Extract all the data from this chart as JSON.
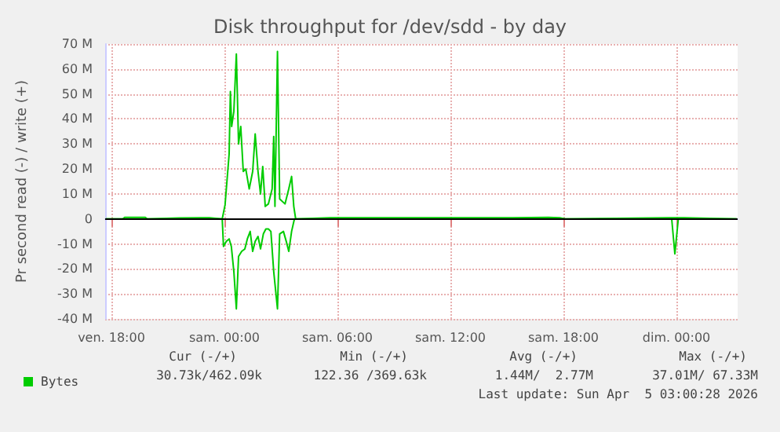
{
  "chart_data": {
    "type": "line",
    "title": "Disk throughput for /dev/sdd - by day",
    "ylabel": "Pr second read (-) / write (+)",
    "xlim": [
      "2026-04-03T17:40",
      "2026-04-05T03:15"
    ],
    "xticks": [
      {
        "value": "2026-04-03T18:00",
        "label": "ven. 18:00"
      },
      {
        "value": "2026-04-04T00:00",
        "label": "sam. 00:00"
      },
      {
        "value": "2026-04-04T06:00",
        "label": "sam. 06:00"
      },
      {
        "value": "2026-04-04T12:00",
        "label": "sam. 12:00"
      },
      {
        "value": "2026-04-04T18:00",
        "label": "sam. 18:00"
      },
      {
        "value": "2026-04-05T00:00",
        "label": "dim. 00:00"
      }
    ],
    "ylim": [
      -40,
      70
    ],
    "yticks": [
      {
        "value": -40,
        "label": "-40 M"
      },
      {
        "value": -30,
        "label": "-30 M"
      },
      {
        "value": -20,
        "label": "-20 M"
      },
      {
        "value": -10,
        "label": "-10 M"
      },
      0,
      {
        "value": 10,
        "label": "10 M"
      },
      {
        "value": 20,
        "label": "20 M"
      },
      {
        "value": 30,
        "label": "30 M"
      },
      {
        "value": 40,
        "label": "40 M"
      },
      {
        "value": 50,
        "label": "50 M"
      },
      {
        "value": 60,
        "label": "60 M"
      },
      {
        "value": 70,
        "label": "70 M"
      }
    ],
    "grid": true,
    "legend": "bottom left",
    "ref_lines": [
      {
        "axis": "y",
        "value": 0,
        "color": "#000000"
      }
    ],
    "series": [
      {
        "name": "Bytes",
        "color": "#00cc00",
        "x": [
          "2026-04-03T17:42",
          "2026-04-03T18:36",
          "2026-04-03T18:42",
          "2026-04-03T19:48",
          "2026-04-03T19:54",
          "2026-04-03T21:36",
          "2026-04-03T23:12",
          "2026-04-03T23:53",
          "2026-04-04T00:02",
          "2026-04-04T00:15",
          "2026-04-04T00:19",
          "2026-04-04T00:23",
          "2026-04-04T00:30",
          "2026-04-04T00:38",
          "2026-04-04T00:45",
          "2026-04-04T00:52",
          "2026-04-04T01:00",
          "2026-04-04T01:08",
          "2026-04-04T01:19",
          "2026-04-04T01:30",
          "2026-04-04T01:38",
          "2026-04-04T01:47",
          "2026-04-04T01:55",
          "2026-04-04T02:02",
          "2026-04-04T02:10",
          "2026-04-04T02:20",
          "2026-04-04T02:32",
          "2026-04-04T02:37",
          "2026-04-04T02:41",
          "2026-04-04T02:49",
          "2026-04-04T02:56",
          "2026-04-04T03:13",
          "2026-04-04T03:25",
          "2026-04-04T03:34",
          "2026-04-04T03:41",
          "2026-04-04T03:47",
          "2026-04-04T05:36",
          "2026-04-04T05:48",
          "2026-04-04T13:36",
          "2026-04-04T15:18",
          "2026-04-04T17:12",
          "2026-04-04T17:48",
          "2026-04-04T18:06",
          "2026-04-04T23:36",
          "2026-04-05T00:24",
          "2026-04-05T03:12"
        ],
        "values": [
          0,
          0,
          0.6,
          0.6,
          0,
          0.4,
          0.5,
          0,
          5.6,
          26,
          51,
          37,
          43,
          66,
          30,
          37,
          19,
          20,
          12,
          19,
          34,
          19,
          10,
          21,
          5,
          6,
          12,
          33,
          5,
          67,
          8,
          6,
          12,
          17,
          5,
          0,
          0.5,
          0.5,
          0.5,
          0.5,
          0.6,
          0.5,
          0,
          0.5,
          0.5,
          0
        ]
      },
      {
        "color": "#00cc00",
        "x": [
          "2026-04-03T17:42",
          "2026-04-03T23:53",
          "2026-04-03T23:57",
          "2026-04-04T00:06",
          "2026-04-04T00:15",
          "2026-04-04T00:22",
          "2026-04-04T00:30",
          "2026-04-04T00:38",
          "2026-04-04T00:45",
          "2026-04-04T00:55",
          "2026-04-04T01:05",
          "2026-04-04T01:13",
          "2026-04-04T01:22",
          "2026-04-04T01:30",
          "2026-04-04T01:38",
          "2026-04-04T01:47",
          "2026-04-04T01:55",
          "2026-04-04T02:04",
          "2026-04-04T02:12",
          "2026-04-04T02:20",
          "2026-04-04T02:28",
          "2026-04-04T02:37",
          "2026-04-04T02:49",
          "2026-04-04T02:56",
          "2026-04-04T03:08",
          "2026-04-04T03:17",
          "2026-04-04T03:25",
          "2026-04-04T03:34",
          "2026-04-04T03:43",
          "2026-04-04T23:45",
          "2026-04-04T23:55",
          "2026-04-05T00:06",
          "2026-04-05T03:12"
        ],
        "values": [
          0,
          0,
          -11,
          -9,
          -8,
          -11,
          -21,
          -36,
          -15,
          -13,
          -12,
          -8,
          -5,
          -13,
          -9,
          -7,
          -12,
          -6,
          -4,
          -4,
          -5,
          -21,
          -36,
          -6,
          -5,
          -9,
          -13,
          -5,
          0,
          0,
          -14,
          0,
          0
        ]
      }
    ],
    "annotations": [
      "Cur (-/+)",
      "Min (-/+)",
      "Avg (-/+)",
      "Max (-/+)",
      "30.73k/462.09k",
      "122.36 /369.63k",
      "1.44M/  2.77M",
      "37.01M/ 67.33M",
      "Last update: Sun Apr  5 03:00:28 2026"
    ]
  }
}
